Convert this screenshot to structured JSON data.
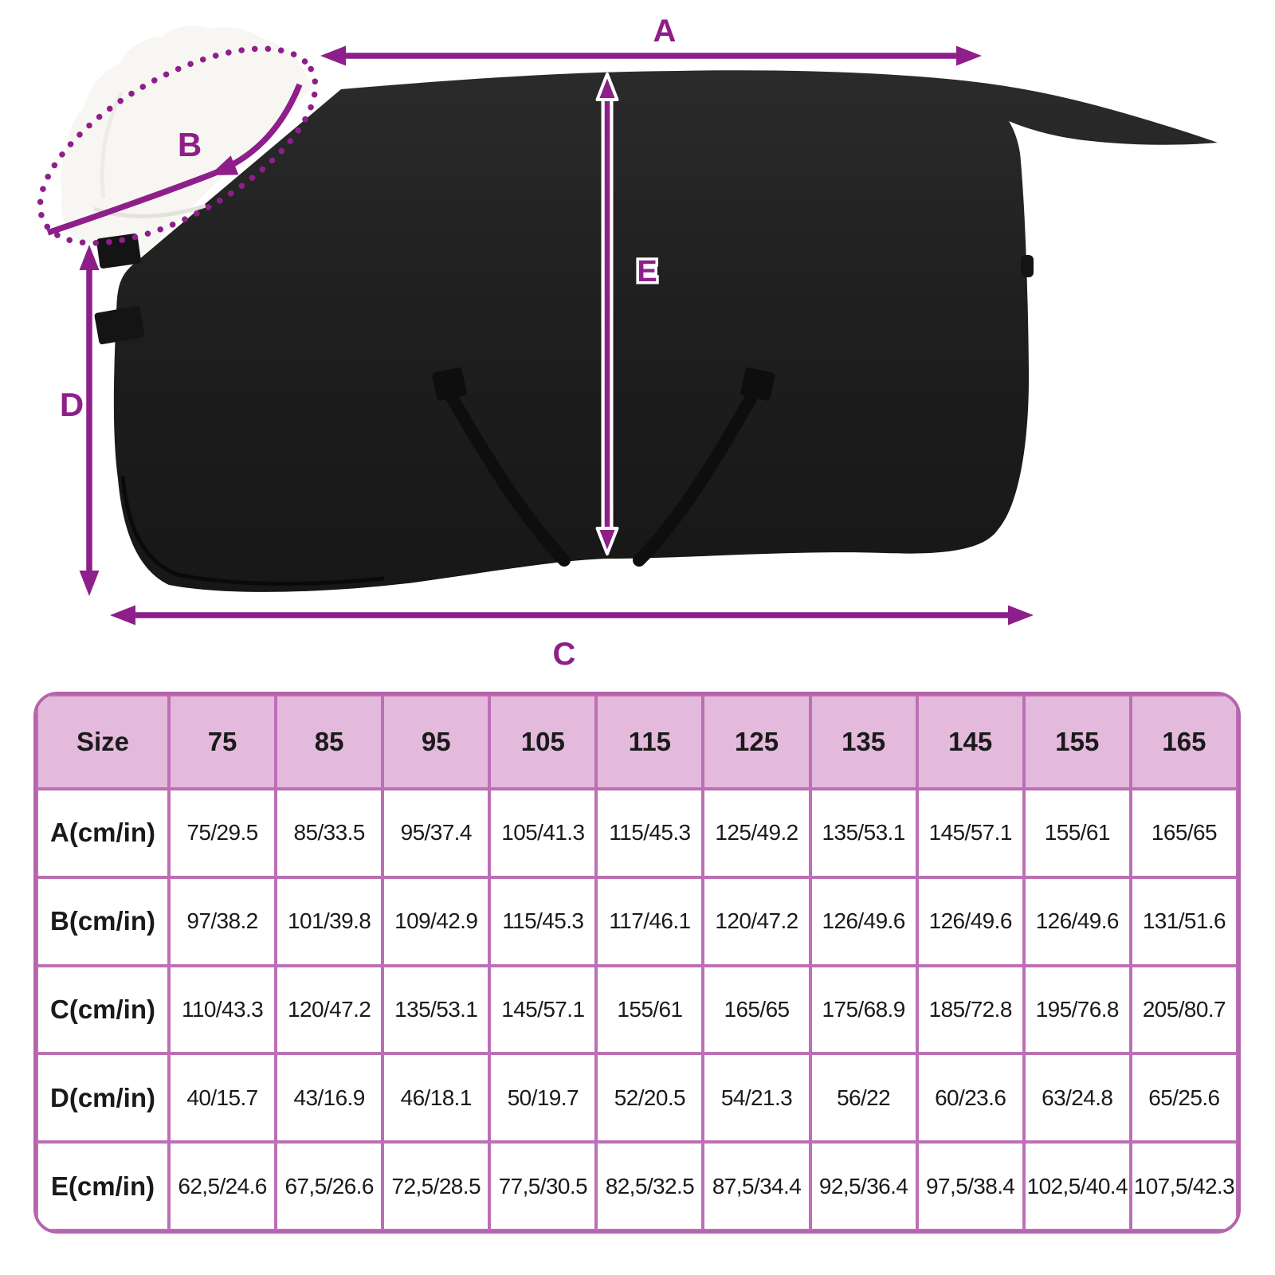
{
  "diagram": {
    "measurement_labels": {
      "a": "A",
      "b": "B",
      "c": "C",
      "d": "D",
      "e": "E"
    },
    "colors": {
      "arrow": "#8E1F8A",
      "blanket": "#1e1e1e",
      "collar": "#f7f6f3"
    }
  },
  "size_table": {
    "header_row": [
      "Size",
      "75",
      "85",
      "95",
      "105",
      "115",
      "125",
      "135",
      "145",
      "155",
      "165"
    ],
    "rows": [
      {
        "label": "A(cm/in)",
        "values": [
          "75/29.5",
          "85/33.5",
          "95/37.4",
          "105/41.3",
          "115/45.3",
          "125/49.2",
          "135/53.1",
          "145/57.1",
          "155/61",
          "165/65"
        ]
      },
      {
        "label": "B(cm/in)",
        "values": [
          "97/38.2",
          "101/39.8",
          "109/42.9",
          "115/45.3",
          "117/46.1",
          "120/47.2",
          "126/49.6",
          "126/49.6",
          "126/49.6",
          "131/51.6"
        ]
      },
      {
        "label": "C(cm/in)",
        "values": [
          "110/43.3",
          "120/47.2",
          "135/53.1",
          "145/57.1",
          "155/61",
          "165/65",
          "175/68.9",
          "185/72.8",
          "195/76.8",
          "205/80.7"
        ]
      },
      {
        "label": "D(cm/in)",
        "values": [
          "40/15.7",
          "43/16.9",
          "46/18.1",
          "50/19.7",
          "52/20.5",
          "54/21.3",
          "56/22",
          "60/23.6",
          "63/24.8",
          "65/25.6"
        ]
      },
      {
        "label": "E(cm/in)",
        "values": [
          "62,5/24.6",
          "67,5/26.6",
          "72,5/28.5",
          "77,5/30.5",
          "82,5/32.5",
          "87,5/34.4",
          "92,5/36.4",
          "97,5/38.4",
          "102,5/40.4",
          "107,5/42.3"
        ]
      }
    ],
    "colors": {
      "border": "#BD6FB5",
      "outer_border": "#B564AC",
      "header_bg": "#E3BADC",
      "cell_bg": "#ffffff",
      "text": "#1a1a1a"
    }
  }
}
